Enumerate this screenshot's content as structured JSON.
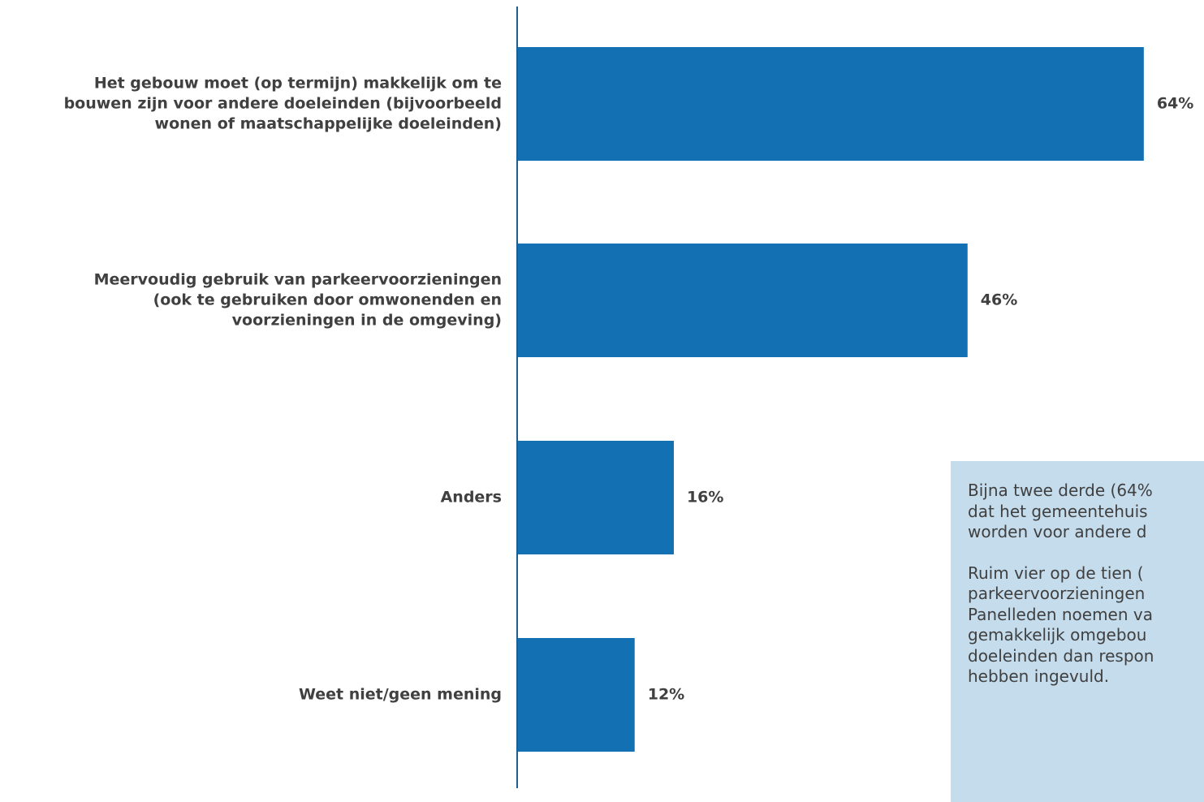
{
  "chart_data": {
    "type": "bar",
    "orientation": "horizontal",
    "categories": [
      "Het gebouw moet (op termijn) makkelijk om te bouwen zijn voor andere doeleinden (bijvoorbeeld wonen of maatschappelijke doeleinden)",
      "Meervoudig gebruik van parkeervoorzieningen (ook te gebruiken door omwonenden en voorzieningen in de omgeving)",
      "Anders",
      "Weet niet/geen mening"
    ],
    "category_lines": [
      [
        "Het gebouw moet (op termijn) makkelijk om te",
        "bouwen zijn voor andere doeleinden (bijvoorbeeld",
        "wonen of maatschappelijke doeleinden)"
      ],
      [
        "Meervoudig gebruik van parkeervoorzieningen",
        "(ook te gebruiken door omwonenden en",
        "voorzieningen in de omgeving)"
      ],
      [
        "Anders"
      ],
      [
        "Weet niet/geen mening"
      ]
    ],
    "values": [
      64,
      46,
      16,
      12
    ],
    "data_labels": [
      "64%",
      "46%",
      "16%",
      "12%"
    ],
    "unit": "%",
    "bar_color": "#1270b3",
    "label_color": "#404040",
    "grid": false,
    "legend": "none"
  },
  "callout": {
    "paragraph1": [
      "Bijna twee derde (64%",
      "dat het gemeentehuis",
      "worden voor andere d"
    ],
    "paragraph2": [
      "Ruim vier op de tien (",
      "parkeervoorzieningen",
      "Panelleden noemen va",
      "gemakkelijk omgebou",
      "doeleinden dan respon",
      "hebben ingevuld."
    ],
    "background": "#c5dcec"
  }
}
